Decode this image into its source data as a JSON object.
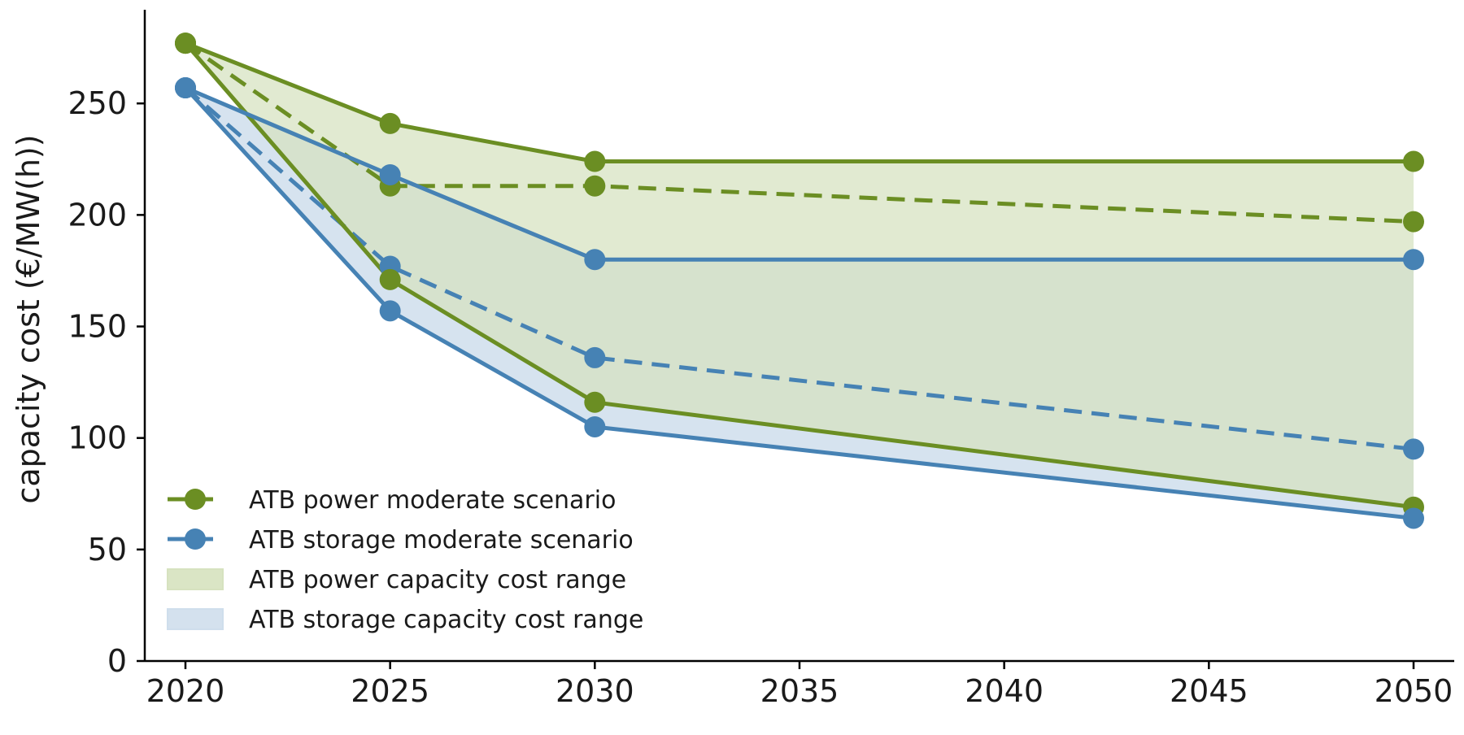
{
  "chart_data": {
    "type": "line",
    "ylabel": "capacity cost (€/MW(h))",
    "xlabel": "",
    "title": "",
    "xlim": [
      2019,
      2051
    ],
    "ylim": [
      0,
      292
    ],
    "x": [
      2020,
      2025,
      2030,
      2050
    ],
    "xticks": [
      2020,
      2025,
      2030,
      2035,
      2040,
      2045,
      2050
    ],
    "xtick_labels": [
      "2020",
      "2025",
      "2030",
      "2035",
      "2040",
      "2045",
      "2050"
    ],
    "yticks": [
      0,
      50,
      100,
      150,
      200,
      250
    ],
    "ytick_labels": [
      "0",
      "50",
      "100",
      "150",
      "200",
      "250"
    ],
    "grid": false,
    "legend_position": "lower-left",
    "colors": {
      "power": "#6b8e23",
      "storage": "#4682b4",
      "power_fill": "#d6e2bf",
      "storage_fill": "#cfdeec"
    },
    "series": [
      {
        "name": "ATB power moderate scenario",
        "group": "power",
        "style": "dashed",
        "values": [
          277,
          213,
          213,
          197
        ]
      },
      {
        "name": "ATB storage moderate scenario",
        "group": "storage",
        "style": "dashed",
        "values": [
          257,
          177,
          136,
          95
        ]
      },
      {
        "group": "power",
        "style": "solid",
        "bound": "upper",
        "values": [
          277,
          241,
          224,
          224
        ]
      },
      {
        "group": "power",
        "style": "solid",
        "bound": "lower",
        "values": [
          277,
          171,
          116,
          69
        ]
      },
      {
        "group": "storage",
        "style": "solid",
        "bound": "upper",
        "values": [
          257,
          218,
          180,
          180
        ]
      },
      {
        "group": "storage",
        "style": "solid",
        "bound": "lower",
        "values": [
          257,
          157,
          105,
          64
        ]
      }
    ],
    "ranges": [
      {
        "name": "ATB power capacity cost range",
        "group": "power",
        "upper": [
          277,
          241,
          224,
          224
        ],
        "lower": [
          277,
          171,
          116,
          69
        ]
      },
      {
        "name": "ATB storage capacity cost range",
        "group": "storage",
        "upper": [
          257,
          218,
          180,
          180
        ],
        "lower": [
          257,
          157,
          105,
          64
        ]
      }
    ],
    "legend": [
      {
        "label": "ATB power moderate scenario",
        "kind": "line-marker",
        "group": "power"
      },
      {
        "label": "ATB storage moderate scenario",
        "kind": "line-marker",
        "group": "storage"
      },
      {
        "label": "ATB power capacity cost range",
        "kind": "patch",
        "group": "power"
      },
      {
        "label": "ATB storage capacity cost range",
        "kind": "patch",
        "group": "storage"
      }
    ]
  }
}
